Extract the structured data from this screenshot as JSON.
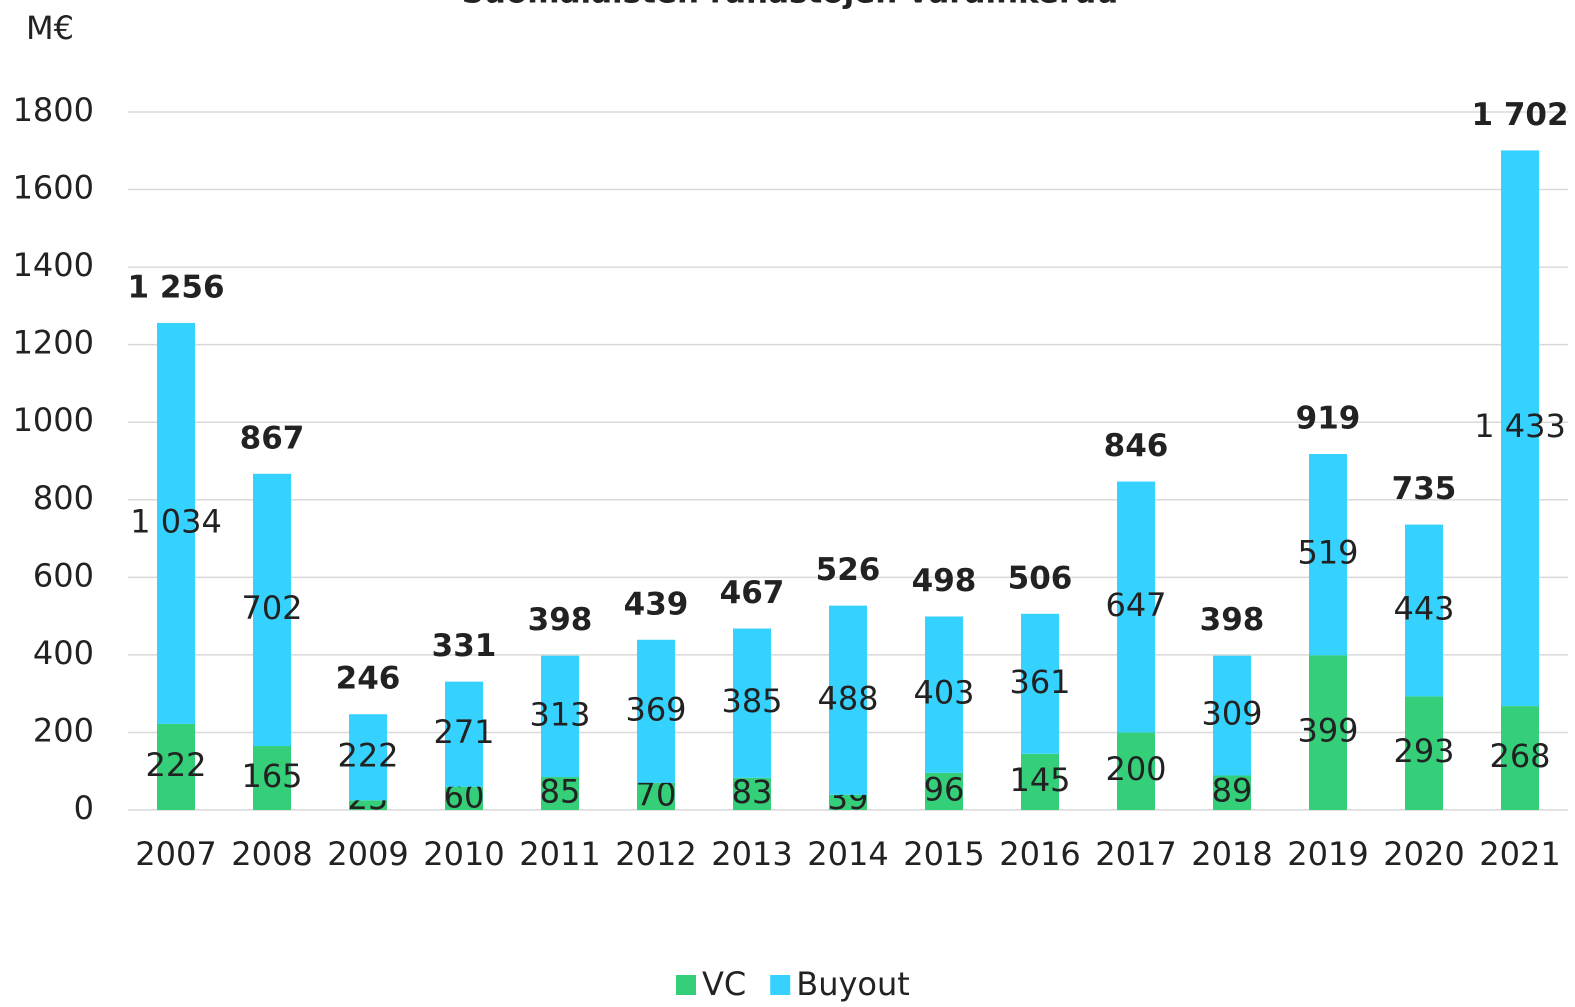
{
  "chart_data": {
    "type": "stacked_bar",
    "title": "Suomalaisten rahastojen varainkeruu",
    "y_label": "M€",
    "categories": [
      "2007",
      "2008",
      "2009",
      "2010",
      "2011",
      "2012",
      "2013",
      "2014",
      "2015",
      "2016",
      "2017",
      "2018",
      "2019",
      "2020",
      "2021"
    ],
    "series": [
      {
        "name": "VC",
        "color": "#35cf7a",
        "values": [
          222,
          165,
          25,
          60,
          85,
          70,
          83,
          39,
          96,
          145,
          200,
          89,
          399,
          293,
          268
        ]
      },
      {
        "name": "Buyout",
        "color": "#36d2ff",
        "values": [
          1034,
          702,
          222,
          271,
          313,
          369,
          385,
          488,
          403,
          361,
          647,
          309,
          519,
          443,
          1433
        ],
        "value_labels": [
          "1 034",
          "702",
          "222",
          "271",
          "313",
          "369",
          "385",
          "488",
          "403",
          "361",
          "647",
          "309",
          "519",
          "443",
          "1 433"
        ]
      }
    ],
    "totals": [
      1256,
      867,
      246,
      331,
      398,
      439,
      467,
      526,
      498,
      506,
      846,
      398,
      919,
      735,
      1702
    ],
    "total_labels": [
      "1 256",
      "867",
      "246",
      "331",
      "398",
      "439",
      "467",
      "526",
      "498",
      "506",
      "846",
      "398",
      "919",
      "735",
      "1 702"
    ],
    "ylim": [
      0,
      1800
    ],
    "yticks": [
      0,
      200,
      400,
      600,
      800,
      1000,
      1200,
      1400,
      1600,
      1800
    ],
    "grid": true,
    "legend": "bottom"
  }
}
